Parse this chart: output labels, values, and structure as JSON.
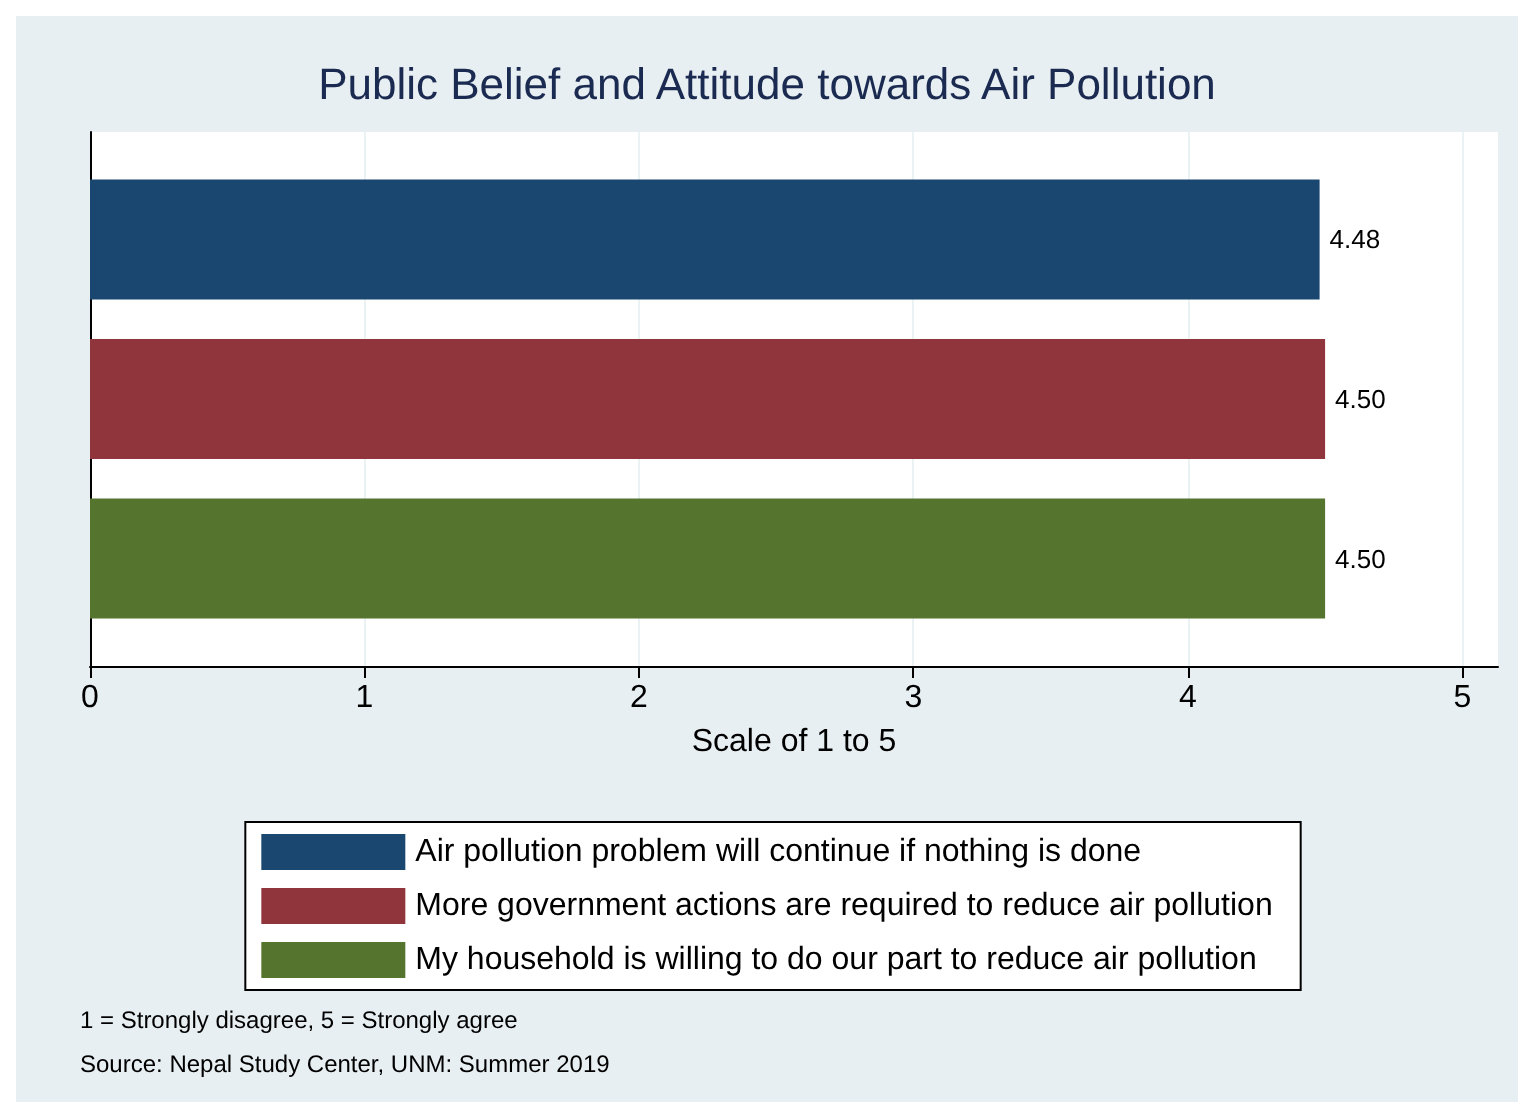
{
  "chart_data": {
    "type": "bar",
    "orientation": "horizontal",
    "title": "Public Belief and Attitude towards Air Pollution",
    "xlabel": "Scale of 1 to 5",
    "categories": [
      null
    ],
    "series": [
      {
        "name": "Air pollution problem will continue if nothing is done",
        "color": "#1a476f",
        "values": [
          4.48
        ],
        "value_labels": [
          "4.48"
        ]
      },
      {
        "name": "More government actions are required to reduce air pollution",
        "color": "#90353b",
        "values": [
          4.5
        ],
        "value_labels": [
          "4.50"
        ]
      },
      {
        "name": "My household is willing to do our part to reduce air pollution",
        "color": "#55752f",
        "values": [
          4.5
        ],
        "value_labels": [
          "4.50"
        ]
      }
    ],
    "xlim": [
      0,
      5.13
    ],
    "xticks": [
      0,
      1,
      2,
      3,
      4,
      5
    ],
    "grid": "x",
    "legend": "bottom",
    "annotations": [
      "1 = Strongly disagree, 5 = Strongly agree",
      "Source: Nepal Study Center, UNM: Summer 2019"
    ]
  }
}
